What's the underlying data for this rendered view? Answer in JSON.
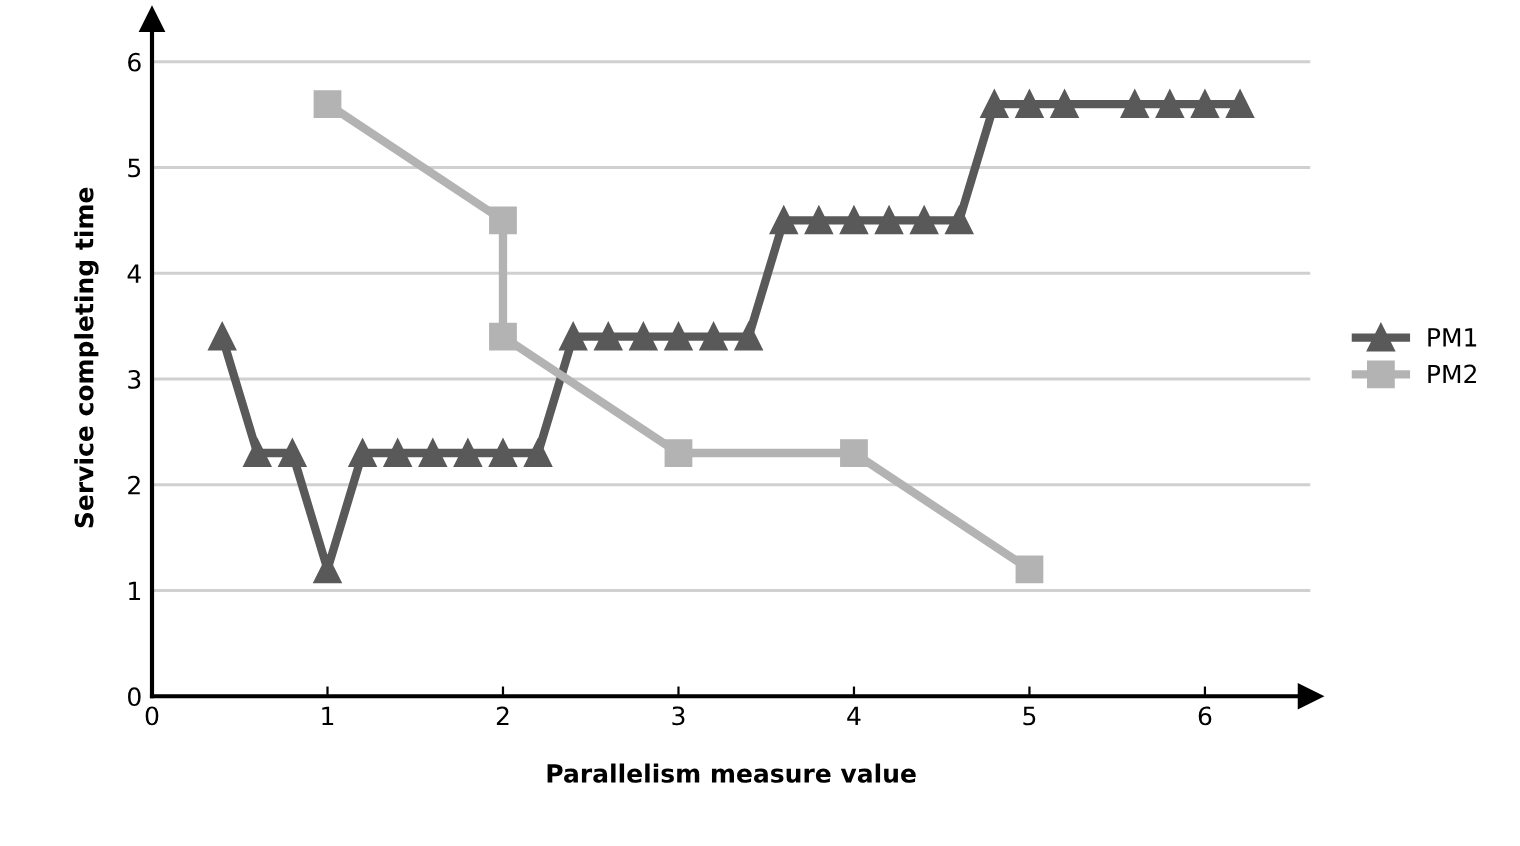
{
  "chart_data": {
    "type": "line",
    "xlabel": "Parallelism measure value",
    "ylabel": "Service completing time",
    "series": [
      {
        "name": "PM1",
        "color": "#595959",
        "marker": "triangle",
        "x": [
          0.4,
          0.6,
          0.8,
          1.0,
          1.2,
          1.4,
          1.6,
          1.8,
          2.0,
          2.2,
          2.4,
          2.6,
          2.8,
          3.0,
          3.2,
          3.4,
          3.6,
          3.8,
          4.0,
          4.2,
          4.4,
          4.6,
          4.8,
          5.0,
          5.2,
          5.6,
          5.8,
          6.0,
          6.2
        ],
        "values": [
          3.4,
          2.3,
          2.3,
          1.2,
          2.3,
          2.3,
          2.3,
          2.3,
          2.3,
          2.3,
          3.4,
          3.4,
          3.4,
          3.4,
          3.4,
          3.4,
          4.5,
          4.5,
          4.5,
          4.5,
          4.5,
          4.5,
          5.6,
          5.6,
          5.6,
          5.6,
          5.6,
          5.6,
          5.6
        ]
      },
      {
        "name": "PM2",
        "color": "#b3b3b3",
        "marker": "square",
        "x": [
          1,
          2,
          2,
          3,
          4,
          5
        ],
        "values": [
          5.6,
          4.5,
          3.4,
          2.3,
          2.3,
          1.2
        ]
      }
    ],
    "xlim": [
      0,
      6.6
    ],
    "xticks": [
      0,
      1,
      2,
      3,
      4,
      5,
      6
    ],
    "ylim": [
      0,
      6.4
    ],
    "yticks": [
      0,
      1,
      2,
      3,
      4,
      5,
      6
    ],
    "grid": "y",
    "legend": "right",
    "line_style": "solid"
  }
}
